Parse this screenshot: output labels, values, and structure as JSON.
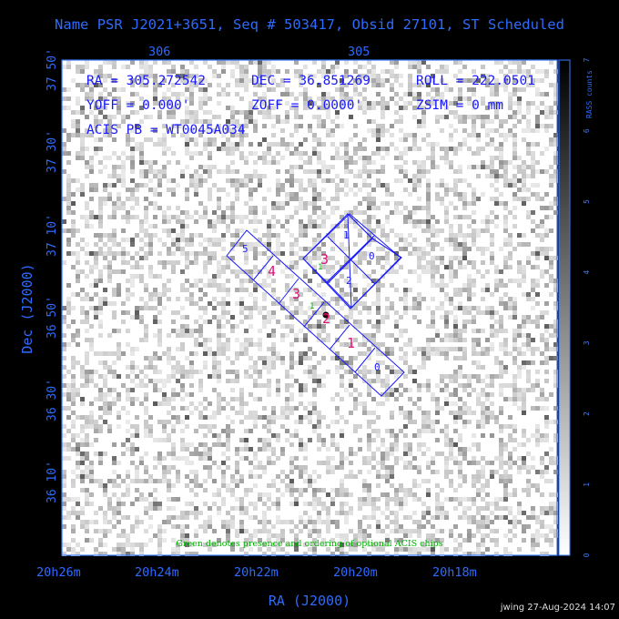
{
  "title": "Name PSR J2021+3651, Seq # 503417, Obsid 27101, ST Scheduled",
  "chart_data": {
    "type": "heatmap",
    "xlabel": "RA (J2000)",
    "ylabel": "Dec (J2000)",
    "x_ticks_bottom": [
      "20h26m",
      "20h24m",
      "20h22m",
      "20h20m",
      "20h18m"
    ],
    "x_ticks_top": [
      "306",
      "305"
    ],
    "y_ticks": [
      "37 50'",
      "37 30'",
      "37 10'",
      "36 50'",
      "36 30'",
      "36 10'"
    ],
    "colorbar": {
      "label": "RASS counts",
      "ticks": [
        "0",
        "1",
        "2",
        "3",
        "4",
        "5",
        "6",
        "7"
      ],
      "range": [
        0,
        7
      ]
    },
    "annotations": {
      "ra": "RA = 305.272542",
      "dec": "DEC = 36.851269",
      "roll": "ROLL = 222.0501",
      "yoff": "YOFF = 0.000'",
      "zoff": "ZOFF = 0.0000'",
      "zsim": "ZSIM = 0 mm",
      "acis_pb": "ACIS PB = WT0045A034",
      "note": "Green denotes presence and ordering of optional ACIS chips"
    },
    "acis_i_chips": [
      "0",
      "1",
      "2",
      "3"
    ],
    "acis_s_chips": [
      "5",
      "4",
      "3",
      "2",
      "1",
      "0"
    ],
    "optional_chip_order": [
      "1",
      "1"
    ]
  },
  "footer": {
    "stamp": "jwing 27-Aug-2024 14:07"
  },
  "colors": {
    "axis": "#3a7bff",
    "chip_outline": "#1a1aff",
    "chip_label_s": "#e0147a",
    "optional": "#00b000"
  }
}
